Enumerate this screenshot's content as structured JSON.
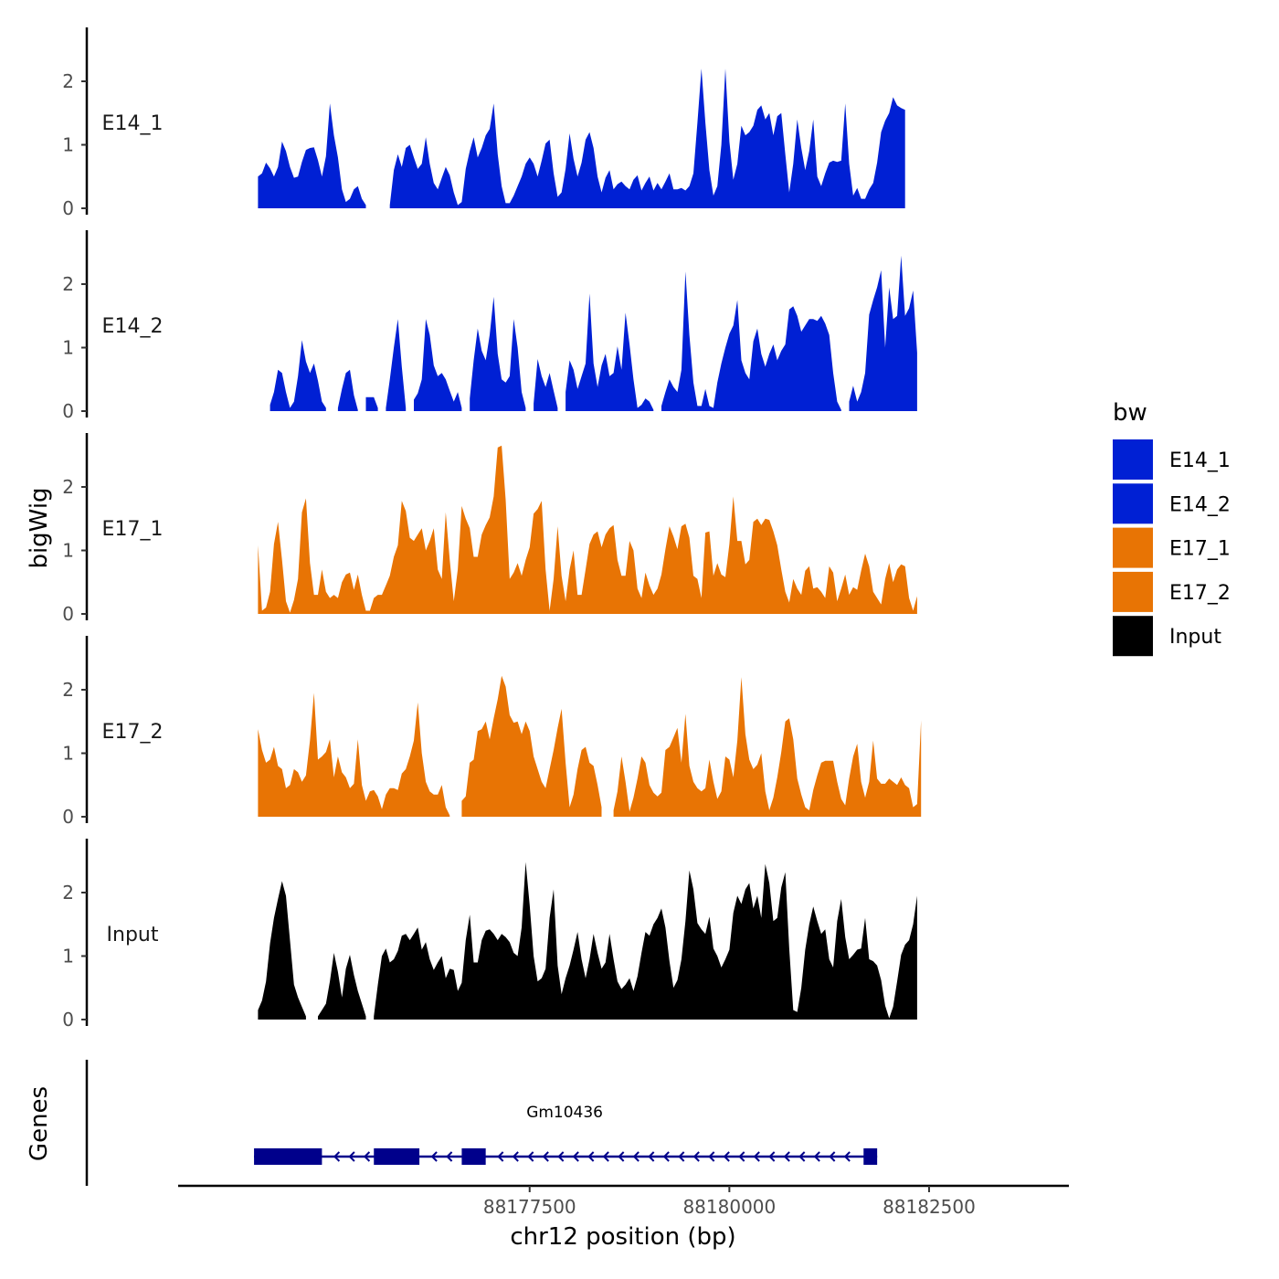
{
  "chart_data": {
    "type": "area",
    "chromosome": "chr12",
    "xlabel": "chr12 position (bp)",
    "ylabel": "bigWig",
    "genes_label": "Genes",
    "xlim": [
      88173100,
      88184250
    ],
    "x_ticks": [
      88177500,
      88180000,
      88182500
    ],
    "x_tick_labels": [
      "88177500",
      "88180000",
      "88182500"
    ],
    "ylim": [
      0,
      2.85
    ],
    "y_ticks": [
      0,
      1,
      2
    ],
    "y_tick_labels": [
      "0",
      "1",
      "2"
    ],
    "legend": {
      "title": "bw",
      "entries": [
        {
          "label": "E14_1",
          "color": "#0020D4"
        },
        {
          "label": "E14_2",
          "color": "#0020D4"
        },
        {
          "label": "E17_1",
          "color": "#E87404"
        },
        {
          "label": "E17_2",
          "color": "#E87404"
        },
        {
          "label": "Input",
          "color": "#000000"
        }
      ]
    },
    "track_start": 88174100,
    "step_bp": 50,
    "series": [
      {
        "name": "E14_1",
        "color": "#0020D4",
        "values": [
          0.5,
          0.55,
          0.72,
          0.63,
          0.5,
          0.65,
          1.05,
          0.9,
          0.65,
          0.48,
          0.5,
          0.73,
          0.92,
          0.95,
          0.96,
          0.76,
          0.5,
          0.82,
          1.65,
          1.15,
          0.8,
          0.3,
          0.1,
          0.15,
          0.3,
          0.35,
          0.15,
          0.05,
          null,
          null,
          null,
          null,
          null,
          0.05,
          0.6,
          0.85,
          0.65,
          0.95,
          1.0,
          0.8,
          0.62,
          0.7,
          1.12,
          0.7,
          0.4,
          0.3,
          0.48,
          0.65,
          0.52,
          0.25,
          0.05,
          0.1,
          0.62,
          0.9,
          1.12,
          0.8,
          0.95,
          1.15,
          1.25,
          1.65,
          0.85,
          0.35,
          0.08,
          0.08,
          0.2,
          0.35,
          0.5,
          0.7,
          0.8,
          0.7,
          0.5,
          0.75,
          1.02,
          1.08,
          0.55,
          0.18,
          0.25,
          0.62,
          1.18,
          0.78,
          0.5,
          0.72,
          1.08,
          1.2,
          0.95,
          0.5,
          0.25,
          0.48,
          0.6,
          0.3,
          0.38,
          0.42,
          0.35,
          0.3,
          0.45,
          0.52,
          0.28,
          0.4,
          0.5,
          0.28,
          0.4,
          0.3,
          0.42,
          0.55,
          0.3,
          0.3,
          0.32,
          0.28,
          0.35,
          0.55,
          1.35,
          2.2,
          1.35,
          0.6,
          0.2,
          0.35,
          1.0,
          2.2,
          1.05,
          0.45,
          0.7,
          1.3,
          1.15,
          1.2,
          1.3,
          1.55,
          1.62,
          1.4,
          1.5,
          1.15,
          1.45,
          1.5,
          0.85,
          0.25,
          0.7,
          1.4,
          0.95,
          0.6,
          0.9,
          1.4,
          0.5,
          0.35,
          0.55,
          0.72,
          0.75,
          0.73,
          0.75,
          1.65,
          0.7,
          0.2,
          0.32,
          0.15,
          0.15,
          0.3,
          0.4,
          0.72,
          1.2,
          1.38,
          1.5,
          1.75,
          1.62,
          1.58,
          1.55
        ]
      },
      {
        "name": "E14_2",
        "color": "#0020D4",
        "values": [
          null,
          null,
          null,
          0.1,
          0.3,
          0.65,
          0.6,
          0.3,
          0.05,
          0.15,
          0.55,
          1.12,
          0.78,
          0.6,
          0.75,
          0.48,
          0.15,
          0.05,
          null,
          null,
          0.05,
          0.35,
          0.6,
          0.65,
          0.25,
          0.02,
          null,
          0.22,
          0.22,
          0.22,
          0.05,
          null,
          0.05,
          0.5,
          1.0,
          1.45,
          0.7,
          0.05,
          null,
          0.18,
          0.28,
          0.5,
          1.45,
          1.2,
          0.72,
          0.55,
          0.6,
          0.5,
          0.32,
          0.15,
          0.3,
          0.05,
          null,
          0.2,
          0.8,
          1.3,
          0.95,
          0.8,
          1.2,
          1.8,
          0.9,
          0.5,
          0.45,
          0.55,
          1.45,
          1.0,
          0.3,
          0.05,
          null,
          0.12,
          0.82,
          0.55,
          0.38,
          0.6,
          0.32,
          0.05,
          null,
          0.3,
          0.8,
          0.65,
          0.35,
          0.55,
          0.75,
          1.85,
          0.75,
          0.38,
          0.72,
          0.9,
          0.55,
          0.6,
          1.02,
          0.65,
          1.55,
          1.05,
          0.5,
          0.05,
          0.1,
          0.2,
          0.15,
          0.02,
          null,
          0.08,
          0.3,
          0.5,
          0.38,
          0.3,
          0.65,
          2.2,
          1.2,
          0.45,
          0.08,
          0.08,
          0.35,
          0.08,
          0.05,
          0.45,
          0.75,
          1.0,
          1.22,
          1.35,
          1.75,
          0.8,
          0.6,
          0.5,
          1.1,
          1.3,
          0.9,
          0.7,
          0.9,
          1.05,
          0.8,
          0.95,
          1.05,
          1.6,
          1.65,
          1.5,
          1.25,
          1.35,
          1.45,
          1.45,
          1.42,
          1.5,
          1.38,
          1.2,
          0.6,
          0.15,
          0.02,
          null,
          0.15,
          0.4,
          0.15,
          0.3,
          0.6,
          1.52,
          1.75,
          1.95,
          2.22,
          1.0,
          1.95,
          1.45,
          1.5,
          2.45,
          1.5,
          1.62,
          1.9,
          0.92
        ]
      },
      {
        "name": "E17_1",
        "color": "#E87404",
        "values": [
          1.08,
          0.05,
          0.1,
          0.35,
          1.1,
          1.45,
          0.85,
          0.2,
          0.02,
          0.22,
          0.55,
          1.6,
          1.82,
          0.8,
          0.3,
          0.3,
          0.7,
          0.35,
          0.25,
          0.3,
          0.25,
          0.5,
          0.62,
          0.65,
          0.38,
          0.62,
          0.3,
          0.05,
          0.05,
          0.25,
          0.3,
          0.3,
          0.45,
          0.6,
          0.9,
          1.08,
          1.78,
          1.62,
          1.2,
          1.15,
          1.25,
          1.35,
          1.0,
          1.15,
          1.35,
          0.7,
          0.55,
          1.6,
          0.85,
          0.2,
          0.7,
          1.7,
          1.5,
          1.35,
          0.9,
          0.9,
          1.25,
          1.4,
          1.52,
          1.85,
          2.62,
          2.65,
          1.8,
          0.55,
          0.65,
          0.8,
          0.6,
          0.85,
          1.05,
          1.58,
          1.65,
          1.78,
          0.7,
          0.05,
          0.55,
          1.38,
          0.6,
          0.2,
          0.7,
          1.0,
          0.3,
          0.3,
          0.7,
          1.1,
          1.25,
          1.3,
          1.05,
          1.25,
          1.35,
          1.4,
          0.85,
          0.6,
          0.6,
          1.15,
          1.0,
          0.4,
          0.25,
          0.65,
          0.45,
          0.3,
          0.4,
          0.62,
          1.02,
          1.38,
          1.22,
          1.02,
          1.38,
          1.42,
          1.2,
          0.6,
          0.55,
          0.25,
          1.28,
          1.3,
          0.6,
          0.8,
          0.62,
          0.58,
          1.1,
          1.85,
          1.15,
          1.15,
          0.78,
          0.85,
          1.45,
          1.5,
          1.4,
          1.5,
          1.48,
          1.3,
          1.08,
          0.7,
          0.35,
          0.18,
          0.55,
          0.4,
          0.3,
          0.68,
          0.75,
          0.4,
          0.42,
          0.35,
          0.25,
          0.75,
          0.65,
          0.2,
          0.4,
          0.62,
          0.3,
          0.42,
          0.38,
          0.68,
          0.95,
          0.75,
          0.35,
          0.25,
          0.15,
          0.55,
          0.8,
          0.5,
          0.7,
          0.78,
          0.75,
          0.25,
          0.05,
          0.28
        ]
      },
      {
        "name": "E17_2",
        "color": "#E87404",
        "values": [
          1.38,
          1.05,
          0.85,
          0.9,
          1.1,
          0.8,
          0.75,
          0.45,
          0.5,
          0.75,
          0.7,
          0.55,
          0.65,
          1.2,
          1.95,
          0.9,
          0.95,
          1.02,
          1.22,
          0.62,
          0.95,
          0.7,
          0.62,
          0.45,
          0.52,
          1.22,
          0.5,
          0.25,
          0.4,
          0.42,
          0.32,
          0.12,
          0.35,
          0.45,
          0.45,
          0.42,
          0.68,
          0.75,
          0.95,
          1.2,
          1.8,
          1.0,
          0.55,
          0.4,
          0.35,
          0.35,
          0.5,
          0.15,
          0.02,
          null,
          null,
          0.25,
          0.32,
          0.85,
          0.9,
          1.35,
          1.38,
          1.5,
          1.22,
          1.55,
          1.85,
          2.22,
          2.05,
          1.6,
          1.48,
          1.5,
          1.3,
          1.5,
          1.35,
          0.95,
          0.75,
          0.55,
          0.45,
          0.75,
          1.05,
          1.4,
          1.7,
          0.85,
          0.15,
          0.35,
          0.75,
          1.05,
          1.1,
          0.85,
          0.8,
          0.5,
          0.15,
          null,
          null,
          0.1,
          0.4,
          0.95,
          0.55,
          0.08,
          0.3,
          0.6,
          0.95,
          0.85,
          0.5,
          0.38,
          0.32,
          0.38,
          1.05,
          1.1,
          1.25,
          1.4,
          0.85,
          1.62,
          0.8,
          0.55,
          0.45,
          0.4,
          0.45,
          0.9,
          0.55,
          0.28,
          0.4,
          0.95,
          0.9,
          0.62,
          1.2,
          2.2,
          1.3,
          0.9,
          0.75,
          0.82,
          1.0,
          0.4,
          0.1,
          0.3,
          0.62,
          1.02,
          1.5,
          1.55,
          1.22,
          0.6,
          0.35,
          0.15,
          0.1,
          0.42,
          0.65,
          0.85,
          0.88,
          0.88,
          0.88,
          0.55,
          0.28,
          0.18,
          0.6,
          0.95,
          1.15,
          0.55,
          0.3,
          0.55,
          1.2,
          0.6,
          0.52,
          0.52,
          0.6,
          0.55,
          0.5,
          0.62,
          0.5,
          0.45,
          0.15,
          0.2,
          1.52
        ]
      },
      {
        "name": "Input",
        "color": "#000000",
        "values": [
          0.15,
          0.3,
          0.6,
          1.2,
          1.6,
          1.9,
          2.18,
          1.95,
          1.25,
          0.55,
          0.35,
          0.2,
          0.05,
          null,
          null,
          0.05,
          0.15,
          0.25,
          0.6,
          1.05,
          0.75,
          0.35,
          0.8,
          1.02,
          0.7,
          0.45,
          0.25,
          0.05,
          null,
          0.05,
          0.55,
          1.0,
          1.12,
          0.9,
          0.95,
          1.08,
          1.32,
          1.35,
          1.25,
          1.35,
          1.45,
          1.1,
          1.22,
          0.95,
          0.78,
          0.9,
          1.0,
          0.65,
          0.8,
          0.78,
          0.45,
          0.58,
          1.25,
          1.65,
          0.9,
          0.9,
          1.25,
          1.4,
          1.42,
          1.35,
          1.25,
          1.35,
          1.3,
          1.22,
          1.05,
          1.0,
          1.45,
          2.48,
          1.8,
          1.0,
          0.6,
          0.65,
          0.8,
          1.6,
          2.05,
          0.85,
          0.4,
          0.65,
          0.85,
          1.1,
          1.38,
          0.95,
          0.65,
          0.95,
          1.35,
          1.05,
          0.8,
          0.9,
          1.35,
          0.95,
          0.6,
          0.48,
          0.55,
          0.65,
          0.45,
          0.68,
          1.05,
          1.38,
          1.32,
          1.5,
          1.6,
          1.75,
          1.45,
          0.92,
          0.5,
          0.62,
          0.95,
          1.55,
          2.35,
          2.05,
          1.52,
          1.42,
          1.35,
          1.62,
          1.12,
          1.0,
          0.82,
          0.95,
          1.1,
          1.68,
          1.95,
          1.82,
          2.05,
          2.15,
          1.75,
          1.95,
          1.6,
          2.45,
          2.15,
          1.55,
          1.6,
          2.08,
          2.32,
          1.12,
          0.15,
          0.12,
          0.5,
          1.1,
          1.5,
          1.78,
          1.55,
          1.35,
          1.42,
          0.95,
          0.82,
          1.55,
          1.9,
          1.3,
          0.95,
          1.02,
          1.1,
          1.12,
          1.6,
          0.95,
          0.92,
          0.85,
          0.62,
          0.22,
          0.02,
          0.2,
          0.6,
          1.02,
          1.18,
          1.25,
          1.5,
          1.95
        ]
      }
    ],
    "gene_track": {
      "gene_name": "Gm10436",
      "strand": "-",
      "transcript_start": 88174050,
      "transcript_end": 88181850,
      "exons": [
        [
          88174050,
          88174900
        ],
        [
          88175550,
          88176120
        ],
        [
          88176650,
          88176950
        ],
        [
          88181680,
          88181850
        ]
      ],
      "color": "#00008B"
    }
  }
}
